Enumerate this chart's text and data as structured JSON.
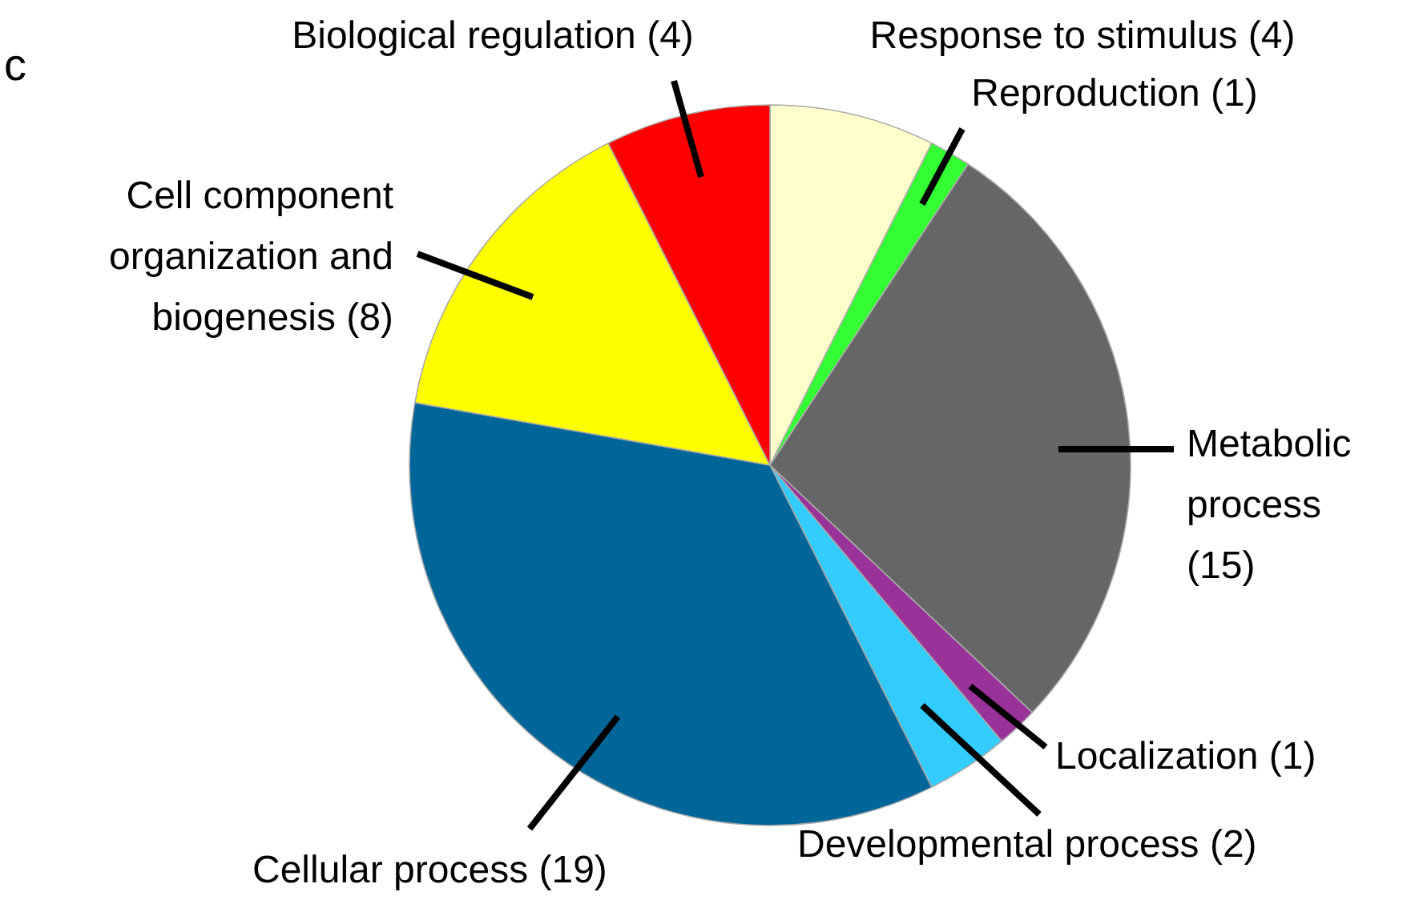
{
  "chart_data": {
    "type": "pie",
    "categories": [
      "Response to stimulus (4)",
      "Reproduction (1)",
      "Metabolic process (15)",
      "Localization (1)",
      "Developmental process (2)",
      "Cellular process (19)",
      "Cell component organization and biogenesis (8)",
      "Biological regulation (4)"
    ],
    "values": [
      4,
      1,
      15,
      1,
      2,
      19,
      8,
      4
    ],
    "colors": [
      "#ffffcc",
      "#33ff33",
      "#666666",
      "#993399",
      "#33ccff",
      "#006699",
      "#ffff00",
      "#ff0000"
    ],
    "annotations": [
      "c"
    ]
  }
}
